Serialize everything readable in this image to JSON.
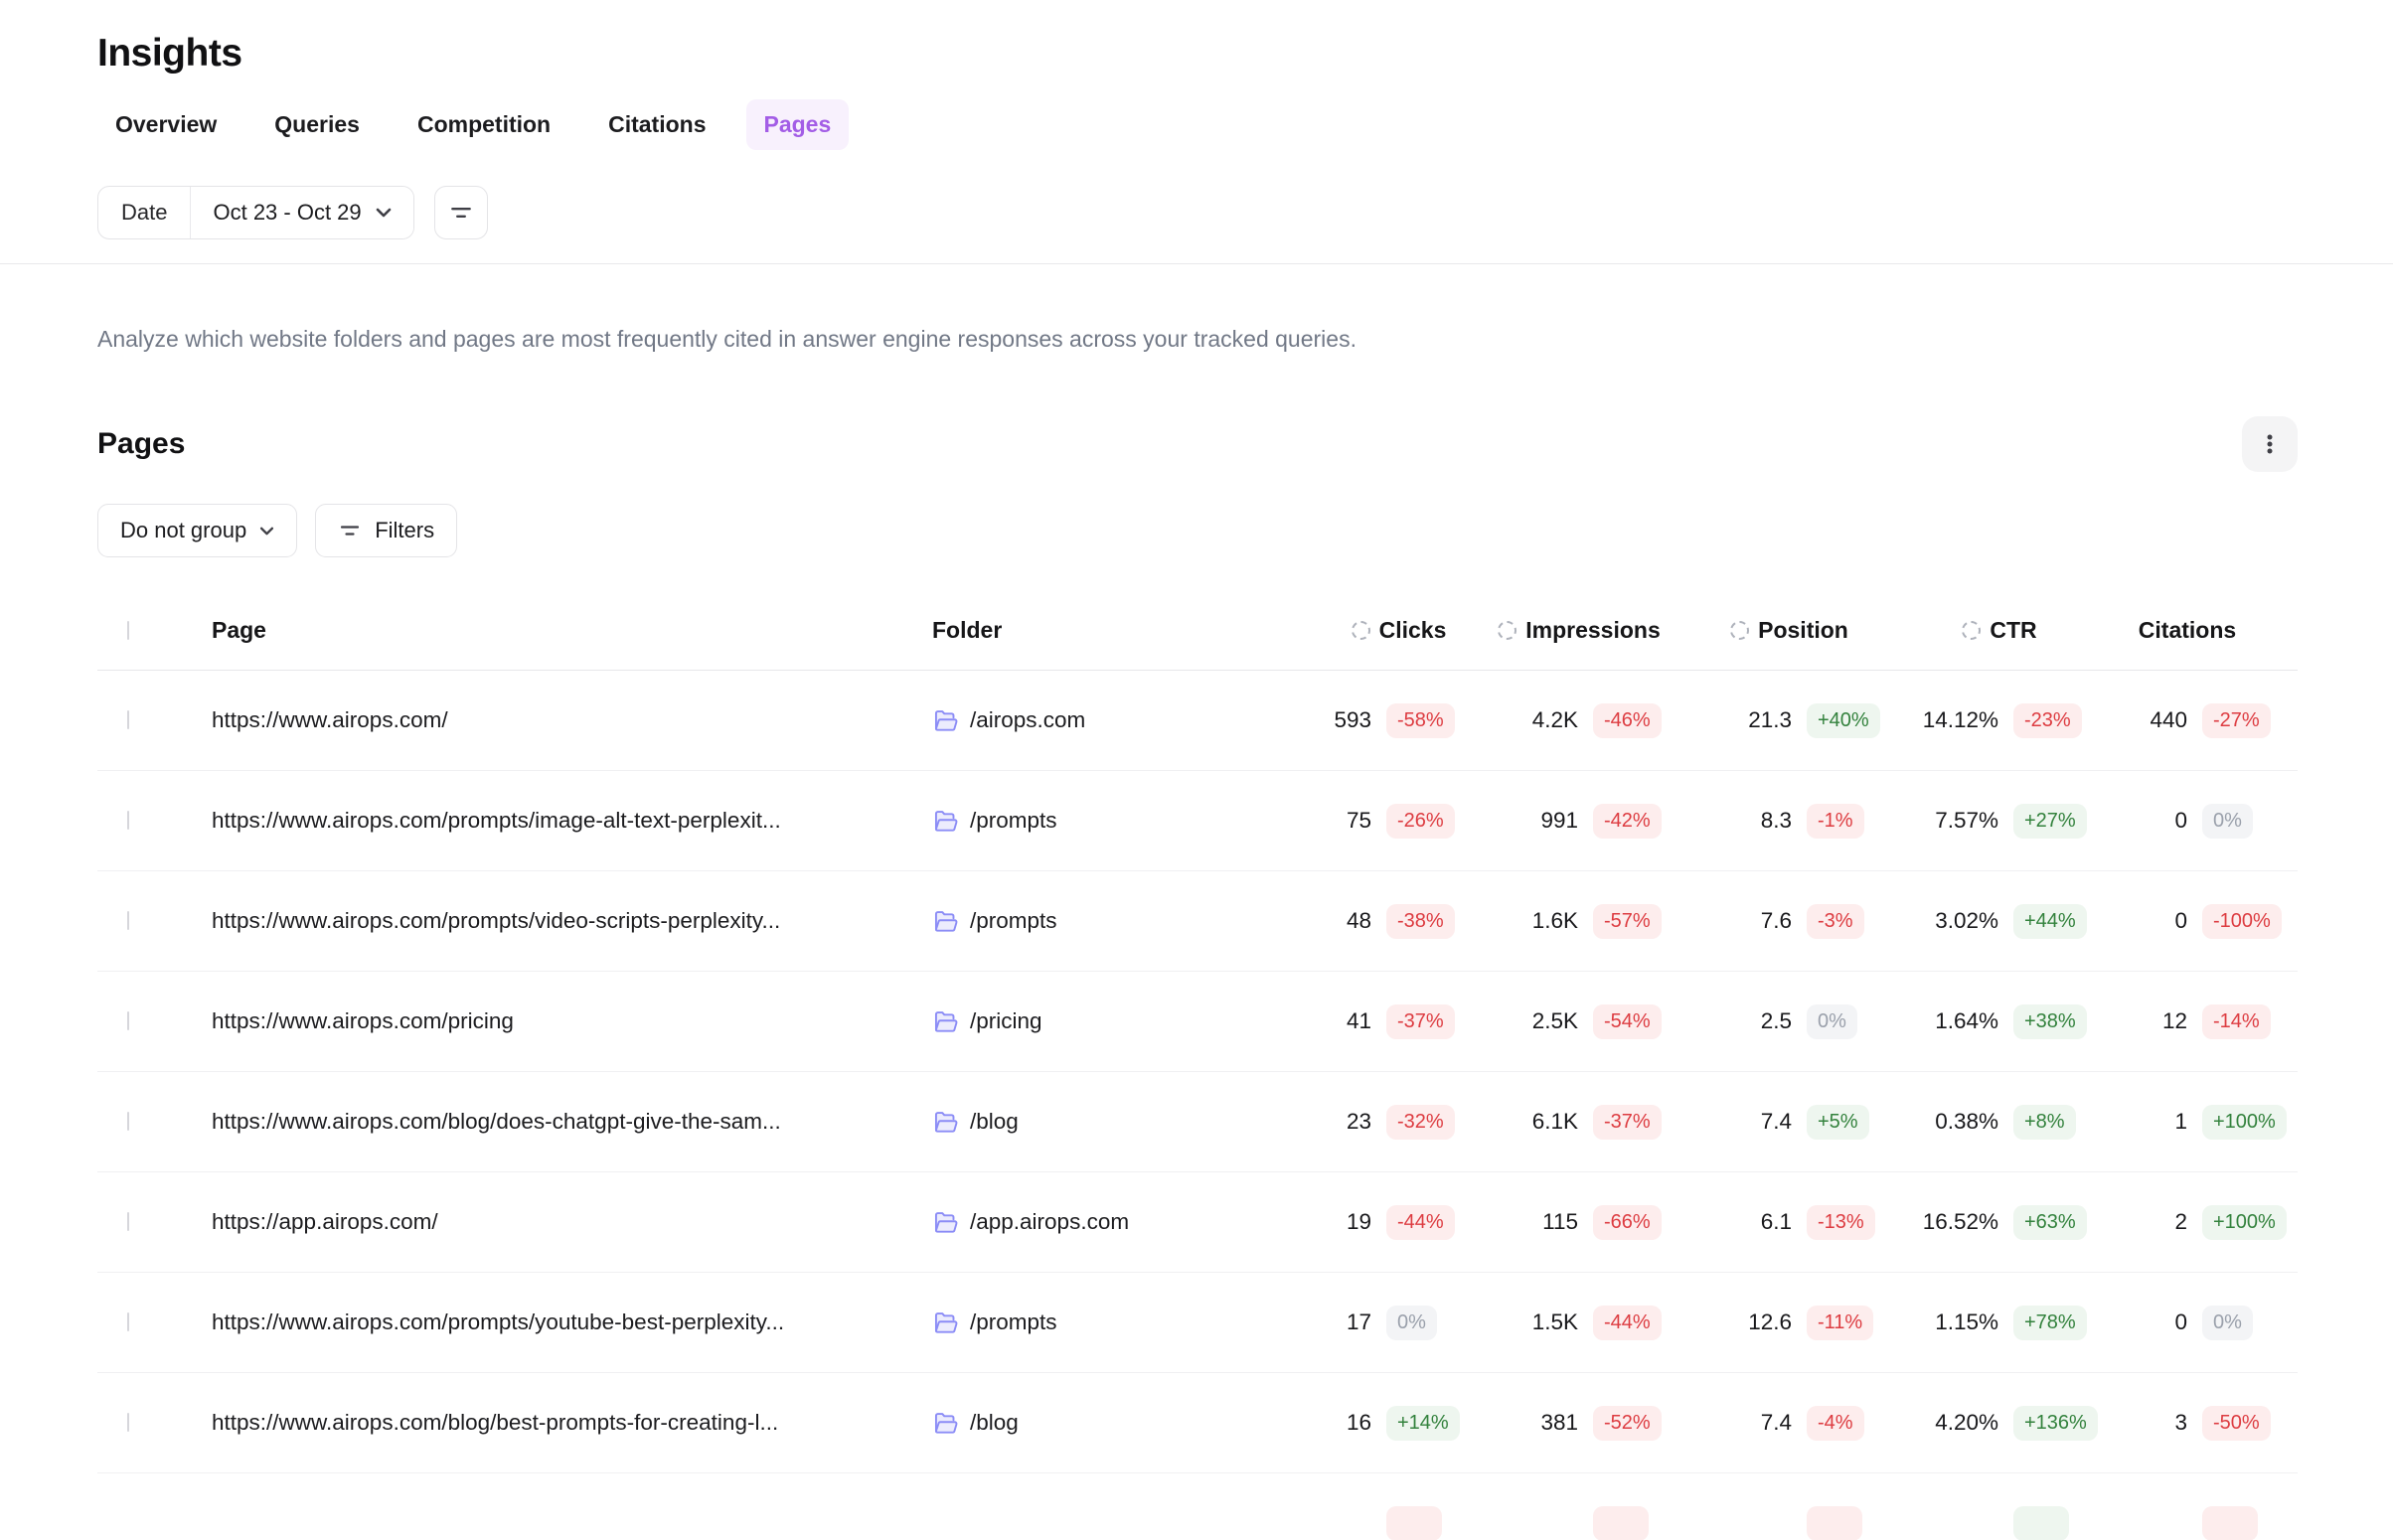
{
  "header": {
    "title": "Insights",
    "tabs": [
      {
        "label": "Overview",
        "active": false
      },
      {
        "label": "Queries",
        "active": false
      },
      {
        "label": "Competition",
        "active": false
      },
      {
        "label": "Citations",
        "active": false
      },
      {
        "label": "Pages",
        "active": true
      }
    ],
    "date_filter": {
      "label": "Date",
      "value": "Oct 23 - Oct 29"
    }
  },
  "description": "Analyze which website folders and pages are most frequently cited in answer engine responses across your tracked queries.",
  "section": {
    "title": "Pages",
    "group_button": "Do not group",
    "filters_button": "Filters"
  },
  "table": {
    "col_page": "Page",
    "col_folder": "Folder",
    "col_clicks": "Clicks",
    "col_impressions": "Impressions",
    "col_position": "Position",
    "col_ctr": "CTR",
    "col_citations": "Citations",
    "rows": [
      {
        "page": "https://www.airops.com/",
        "folder": "/airops.com",
        "clicks": {
          "value": "593",
          "delta": "-58%",
          "trend": "neg"
        },
        "impressions": {
          "value": "4.2K",
          "delta": "-46%",
          "trend": "neg"
        },
        "position": {
          "value": "21.3",
          "delta": "+40%",
          "trend": "pos"
        },
        "ctr": {
          "value": "14.12%",
          "delta": "-23%",
          "trend": "neg"
        },
        "citations": {
          "value": "440",
          "delta": "-27%",
          "trend": "neg"
        }
      },
      {
        "page": "https://www.airops.com/prompts/image-alt-text-perplexit...",
        "folder": "/prompts",
        "clicks": {
          "value": "75",
          "delta": "-26%",
          "trend": "neg"
        },
        "impressions": {
          "value": "991",
          "delta": "-42%",
          "trend": "neg"
        },
        "position": {
          "value": "8.3",
          "delta": "-1%",
          "trend": "neg"
        },
        "ctr": {
          "value": "7.57%",
          "delta": "+27%",
          "trend": "pos"
        },
        "citations": {
          "value": "0",
          "delta": "0%",
          "trend": "neu"
        }
      },
      {
        "page": "https://www.airops.com/prompts/video-scripts-perplexity...",
        "folder": "/prompts",
        "clicks": {
          "value": "48",
          "delta": "-38%",
          "trend": "neg"
        },
        "impressions": {
          "value": "1.6K",
          "delta": "-57%",
          "trend": "neg"
        },
        "position": {
          "value": "7.6",
          "delta": "-3%",
          "trend": "neg"
        },
        "ctr": {
          "value": "3.02%",
          "delta": "+44%",
          "trend": "pos"
        },
        "citations": {
          "value": "0",
          "delta": "-100%",
          "trend": "neg"
        }
      },
      {
        "page": "https://www.airops.com/pricing",
        "folder": "/pricing",
        "clicks": {
          "value": "41",
          "delta": "-37%",
          "trend": "neg"
        },
        "impressions": {
          "value": "2.5K",
          "delta": "-54%",
          "trend": "neg"
        },
        "position": {
          "value": "2.5",
          "delta": "0%",
          "trend": "neu"
        },
        "ctr": {
          "value": "1.64%",
          "delta": "+38%",
          "trend": "pos"
        },
        "citations": {
          "value": "12",
          "delta": "-14%",
          "trend": "neg"
        }
      },
      {
        "page": "https://www.airops.com/blog/does-chatgpt-give-the-sam...",
        "folder": "/blog",
        "clicks": {
          "value": "23",
          "delta": "-32%",
          "trend": "neg"
        },
        "impressions": {
          "value": "6.1K",
          "delta": "-37%",
          "trend": "neg"
        },
        "position": {
          "value": "7.4",
          "delta": "+5%",
          "trend": "pos"
        },
        "ctr": {
          "value": "0.38%",
          "delta": "+8%",
          "trend": "pos"
        },
        "citations": {
          "value": "1",
          "delta": "+100%",
          "trend": "pos"
        }
      },
      {
        "page": "https://app.airops.com/",
        "folder": "/app.airops.com",
        "clicks": {
          "value": "19",
          "delta": "-44%",
          "trend": "neg"
        },
        "impressions": {
          "value": "115",
          "delta": "-66%",
          "trend": "neg"
        },
        "position": {
          "value": "6.1",
          "delta": "-13%",
          "trend": "neg"
        },
        "ctr": {
          "value": "16.52%",
          "delta": "+63%",
          "trend": "pos"
        },
        "citations": {
          "value": "2",
          "delta": "+100%",
          "trend": "pos"
        }
      },
      {
        "page": "https://www.airops.com/prompts/youtube-best-perplexity...",
        "folder": "/prompts",
        "clicks": {
          "value": "17",
          "delta": "0%",
          "trend": "neu"
        },
        "impressions": {
          "value": "1.5K",
          "delta": "-44%",
          "trend": "neg"
        },
        "position": {
          "value": "12.6",
          "delta": "-11%",
          "trend": "neg"
        },
        "ctr": {
          "value": "1.15%",
          "delta": "+78%",
          "trend": "pos"
        },
        "citations": {
          "value": "0",
          "delta": "0%",
          "trend": "neu"
        }
      },
      {
        "page": "https://www.airops.com/blog/best-prompts-for-creating-l...",
        "folder": "/blog",
        "clicks": {
          "value": "16",
          "delta": "+14%",
          "trend": "pos"
        },
        "impressions": {
          "value": "381",
          "delta": "-52%",
          "trend": "neg"
        },
        "position": {
          "value": "7.4",
          "delta": "-4%",
          "trend": "neg"
        },
        "ctr": {
          "value": "4.20%",
          "delta": "+136%",
          "trend": "pos"
        },
        "citations": {
          "value": "3",
          "delta": "-50%",
          "trend": "neg"
        }
      },
      {
        "page": "",
        "folder": "",
        "partial": true,
        "clicks": {
          "value": "",
          "delta": "",
          "trend": "neg"
        },
        "impressions": {
          "value": "",
          "delta": "",
          "trend": "neg"
        },
        "position": {
          "value": "",
          "delta": "",
          "trend": "neg"
        },
        "ctr": {
          "value": "",
          "delta": "",
          "trend": "pos"
        },
        "citations": {
          "value": "",
          "delta": "",
          "trend": "neg"
        }
      }
    ]
  },
  "colors": {
    "accent_purple": "#a35de6",
    "accent_purple_bg": "#f8f1fd",
    "negative": "#dd3c41",
    "negative_bg": "#fdeded",
    "positive": "#33823d",
    "positive_bg": "#eef6ef",
    "neutral": "#9aa0ab",
    "folder_icon": "#8b8cf6"
  }
}
